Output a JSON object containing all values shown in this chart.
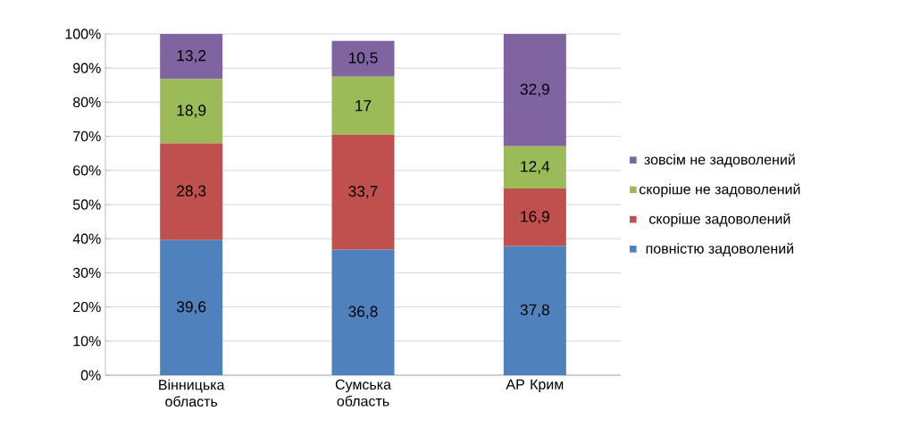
{
  "chart_data": {
    "type": "bar",
    "stacked": true,
    "categories": [
      "Вінницька область",
      "Сумська область",
      "АР Крим"
    ],
    "series": [
      {
        "name": "повністю задоволений",
        "color": "#4f81bd",
        "values": [
          39.6,
          36.8,
          37.8
        ],
        "value_labels": [
          "39,6",
          "36,8",
          "37,8"
        ]
      },
      {
        "name": "скоріше задоволений",
        "color": "#c0504d",
        "values": [
          28.3,
          33.7,
          16.9
        ],
        "value_labels": [
          "28,3",
          "33,7",
          "16,9"
        ]
      },
      {
        "name": "скоріше не задоволений",
        "color": "#9bbb59",
        "values": [
          18.9,
          17,
          12.4
        ],
        "value_labels": [
          "18,9",
          "17",
          "12,4"
        ]
      },
      {
        "name": "зовсім не задоволений",
        "color": "#8064a2",
        "values": [
          13.2,
          10.5,
          32.9
        ],
        "value_labels": [
          "13,2",
          "10,5",
          "32,9"
        ]
      }
    ],
    "ylim": [
      0,
      100
    ],
    "yticks": [
      {
        "value": 0,
        "label": "0%"
      },
      {
        "value": 10,
        "label": "10%"
      },
      {
        "value": 20,
        "label": "20%"
      },
      {
        "value": 30,
        "label": "30%"
      },
      {
        "value": 40,
        "label": "40%"
      },
      {
        "value": 50,
        "label": "50%"
      },
      {
        "value": 60,
        "label": "60%"
      },
      {
        "value": 70,
        "label": "70%"
      },
      {
        "value": 80,
        "label": "80%"
      },
      {
        "value": 90,
        "label": "90%"
      },
      {
        "value": 100,
        "label": "100%"
      }
    ],
    "grid": "y",
    "legend": "right"
  }
}
